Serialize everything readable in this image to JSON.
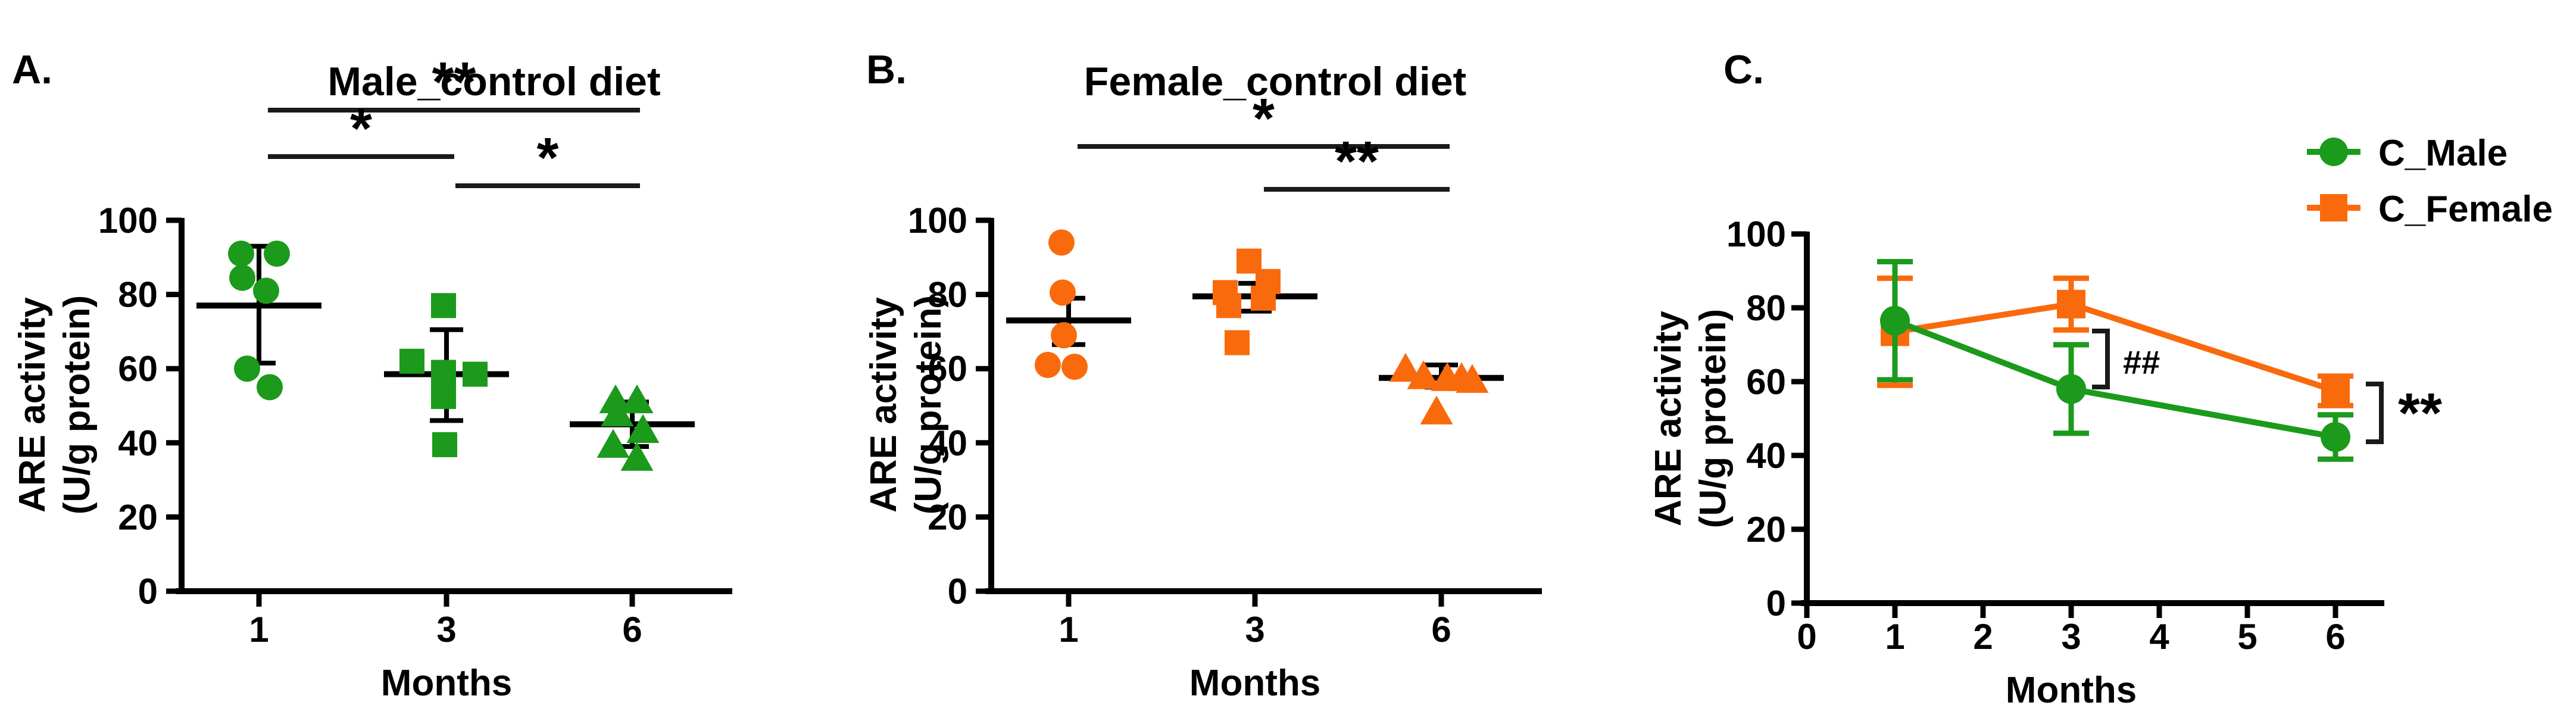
{
  "chart_data": [
    {
      "type": "scatter",
      "panel_label": "A.",
      "title": "Male_control diet",
      "ylabel_line1": "ARE activity",
      "ylabel_line2": "(U/g protein)",
      "xlabel": "Months",
      "color": "#1B9A1B",
      "ylim": [
        0,
        100
      ],
      "yticks": [
        0,
        20,
        40,
        60,
        80,
        100
      ],
      "categories": [
        "1",
        "3",
        "6"
      ],
      "groups": [
        {
          "month": "1",
          "marker": "circle",
          "values": [
            91,
            91,
            84.5,
            81,
            60,
            55
          ],
          "dx": [
            -30,
            30,
            -28,
            12,
            -20,
            18
          ],
          "mean": 77,
          "err_low": 61.5,
          "err_high": 93
        },
        {
          "month": "3",
          "marker": "square",
          "values": [
            77,
            62,
            59,
            58.5,
            52.5,
            39.5
          ],
          "dx": [
            -5,
            -58,
            -5,
            48,
            -5,
            -3
          ],
          "mean": 58.5,
          "err_low": 46,
          "err_high": 70.5
        },
        {
          "month": "6",
          "marker": "triangle",
          "values": [
            51.5,
            51.5,
            48,
            43.5,
            39.5,
            36
          ],
          "dx": [
            -28,
            8,
            -25,
            18,
            -32,
            8
          ],
          "mean": 45,
          "err_low": 39,
          "err_high": 51
        }
      ],
      "significance": [
        {
          "from": "1",
          "to": "6",
          "label": "**"
        },
        {
          "from": "1",
          "to": "3",
          "label": "*"
        },
        {
          "from": "3",
          "to": "6",
          "label": "*"
        }
      ]
    },
    {
      "type": "scatter",
      "panel_label": "B.",
      "title": "Female_control diet",
      "ylabel_line1": "ARE activity",
      "ylabel_line2": "(U/g protein)",
      "xlabel": "Months",
      "color": "#F96A0D",
      "ylim": [
        0,
        100
      ],
      "yticks": [
        0,
        20,
        40,
        60,
        80,
        100
      ],
      "categories": [
        "1",
        "3",
        "6"
      ],
      "groups": [
        {
          "month": "1",
          "marker": "circle",
          "values": [
            94,
            80.5,
            69,
            61,
            60.5
          ],
          "dx": [
            -12,
            -10,
            -8,
            -35,
            10
          ],
          "mean": 73,
          "err_low": 66.5,
          "err_high": 79
        },
        {
          "month": "3",
          "marker": "square",
          "values": [
            89,
            83.5,
            80.5,
            79,
            77,
            67
          ],
          "dx": [
            -10,
            22,
            -50,
            14,
            -44,
            -30
          ],
          "mean": 79.5,
          "err_low": 75.5,
          "err_high": 83
        },
        {
          "month": "6",
          "marker": "triangle",
          "values": [
            60,
            58,
            57.5,
            57.5,
            57,
            48.5
          ],
          "dx": [
            -60,
            -30,
            34,
            10,
            52,
            -8
          ],
          "mean": 57.5,
          "err_low": 55,
          "err_high": 61
        }
      ],
      "significance": [
        {
          "from": "1",
          "to": "6",
          "label": "*"
        },
        {
          "from": "3",
          "to": "6",
          "label": "**"
        }
      ]
    },
    {
      "type": "line",
      "panel_label": "C.",
      "title": "",
      "ylabel_line1": "ARE activity",
      "ylabel_line2": "(U/g protein)",
      "xlabel": "Months",
      "ylim": [
        0,
        100
      ],
      "yticks": [
        0,
        20,
        40,
        60,
        80,
        100
      ],
      "xticks": [
        0,
        1,
        2,
        3,
        4,
        5,
        6
      ],
      "series": [
        {
          "name": "C_Male",
          "color": "#1B9A1B",
          "marker": "circle",
          "x": [
            1,
            3,
            6
          ],
          "y": [
            76.5,
            58,
            45
          ],
          "err": [
            16,
            12,
            6
          ]
        },
        {
          "name": "C_Female",
          "color": "#F96A0D",
          "marker": "square",
          "x": [
            1,
            3,
            6
          ],
          "y": [
            73.5,
            81,
            57.5
          ],
          "err": [
            14.5,
            7,
            4
          ]
        }
      ],
      "annotations": [
        {
          "label": "##",
          "at_month": 3,
          "between": [
            "C_Male",
            "C_Female"
          ]
        },
        {
          "label": "**",
          "at_month": 6,
          "between": [
            "C_Male",
            "C_Female"
          ]
        }
      ]
    }
  ]
}
